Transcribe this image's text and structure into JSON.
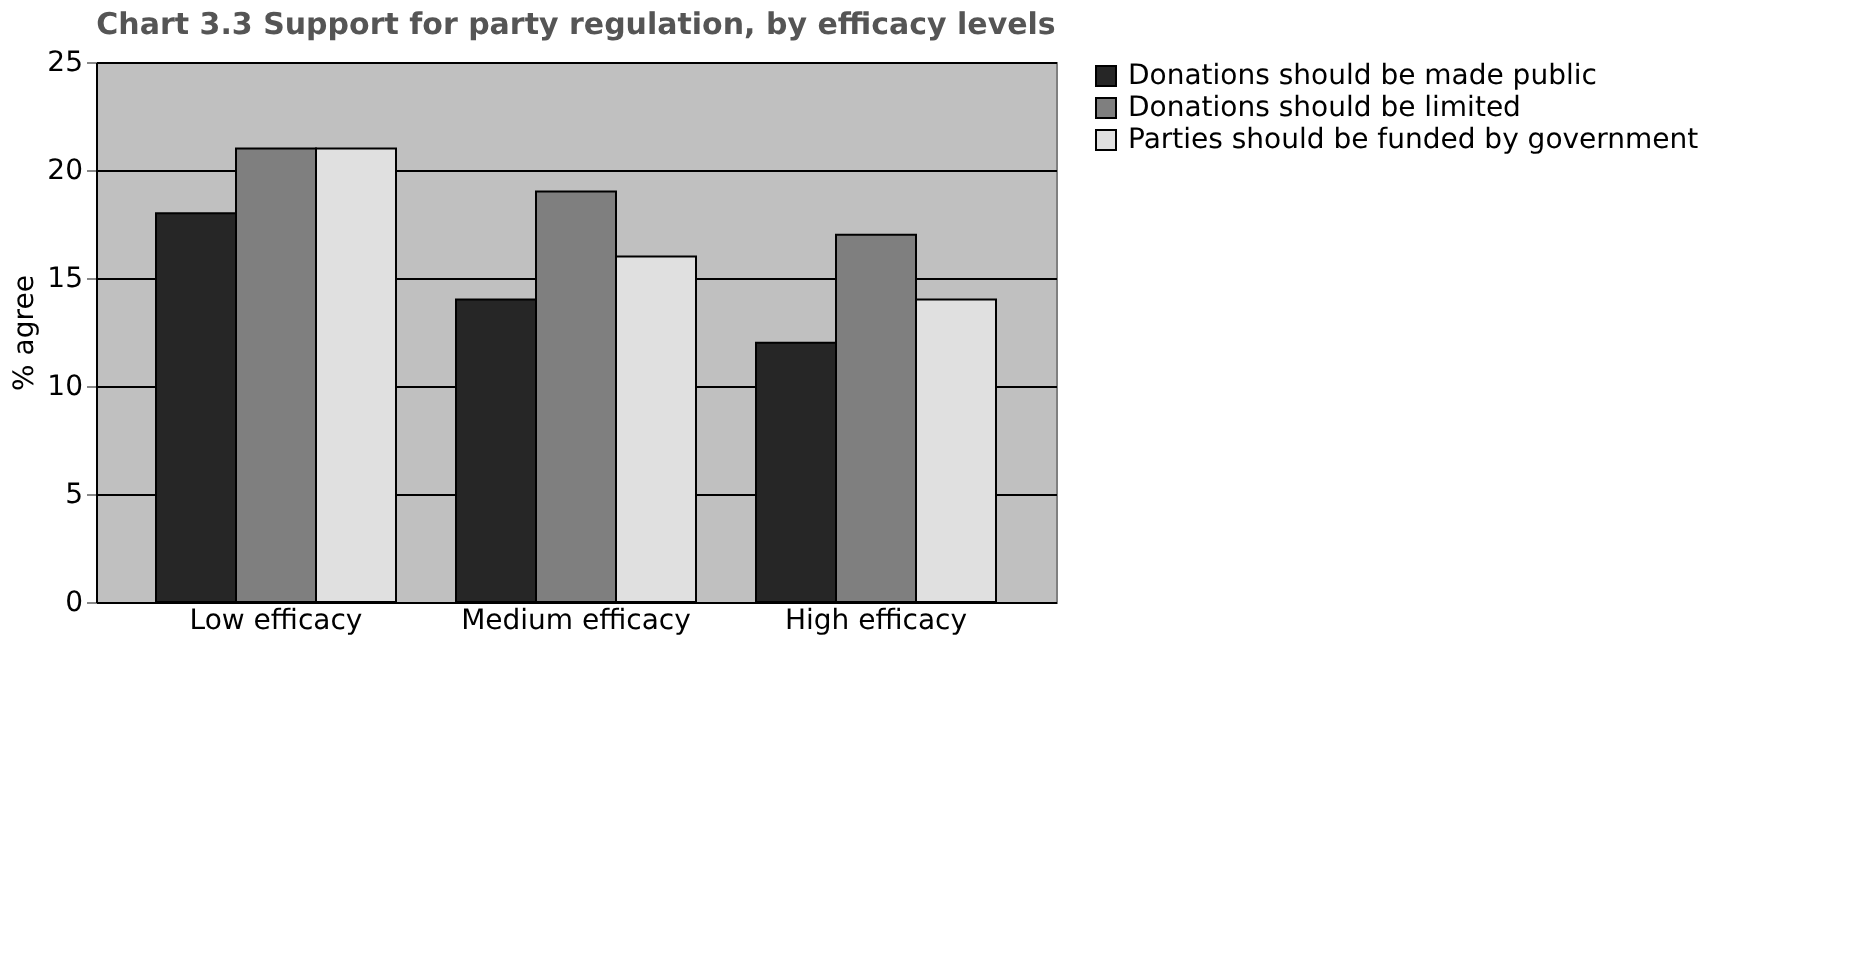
{
  "chart_data": {
    "type": "bar",
    "title": "Chart 3.3  Support for party regulation, by efficacy levels",
    "ylabel": "% agree",
    "categories": [
      "Low efficacy",
      "Medium efficacy",
      "High efficacy"
    ],
    "series": [
      {
        "name": "Donations should be made public",
        "color": "#262626",
        "values": [
          18,
          14,
          12
        ]
      },
      {
        "name": "Donations should be limited",
        "color": "#7f7f7f",
        "values": [
          21,
          19,
          17
        ]
      },
      {
        "name": "Parties should be funded by government",
        "color": "#e0e0e0",
        "values": [
          21,
          16,
          14
        ]
      }
    ],
    "ylim": [
      0,
      25
    ],
    "yticks": [
      0,
      5,
      10,
      15,
      20,
      25
    ],
    "grid": "y",
    "legend": "right"
  }
}
